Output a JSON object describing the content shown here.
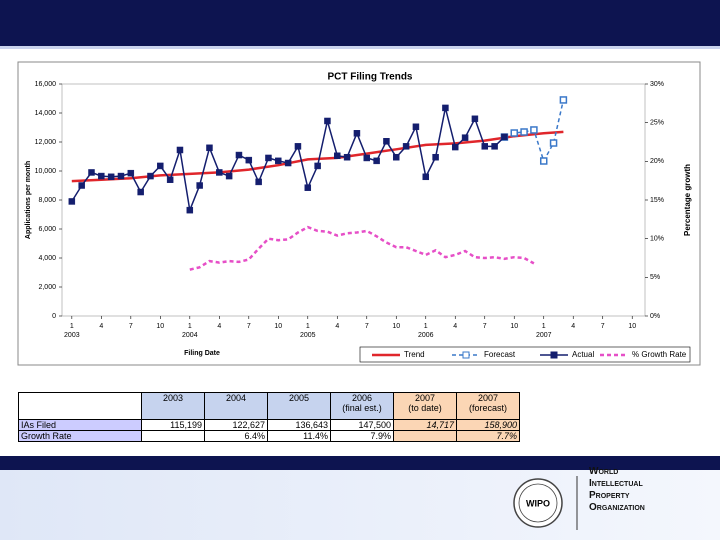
{
  "chart_data": {
    "type": "line",
    "title": "PCT Filing Trends",
    "x_label": "Filing Date",
    "y_label": "Applications per month",
    "y2_label": "Percentage growth",
    "xlim": [
      -1,
      58.3
    ],
    "xticks": [
      {
        "value": 0,
        "label": "1"
      },
      {
        "value": 3,
        "label": "4"
      },
      {
        "value": 6,
        "label": "7"
      },
      {
        "value": 9,
        "label": "10"
      },
      {
        "value": 12,
        "label": "1"
      },
      {
        "value": 15,
        "label": "4"
      },
      {
        "value": 18,
        "label": "7"
      },
      {
        "value": 21,
        "label": "10"
      },
      {
        "value": 24,
        "label": "1"
      },
      {
        "value": 27,
        "label": "4"
      },
      {
        "value": 30,
        "label": "7"
      },
      {
        "value": 33,
        "label": "10"
      },
      {
        "value": 36,
        "label": "1"
      },
      {
        "value": 39,
        "label": "4"
      },
      {
        "value": 42,
        "label": "7"
      },
      {
        "value": 45,
        "label": "10"
      },
      {
        "value": 48,
        "label": "1"
      },
      {
        "value": 51,
        "label": "4"
      },
      {
        "value": 54,
        "label": "7"
      },
      {
        "value": 57,
        "label": "10"
      }
    ],
    "year_labels": [
      {
        "value": 0,
        "label": "2003"
      },
      {
        "value": 12,
        "label": "2004"
      },
      {
        "value": 24,
        "label": "2005"
      },
      {
        "value": 36,
        "label": "2006"
      },
      {
        "value": 48,
        "label": "2007"
      }
    ],
    "ylim": [
      0,
      16000
    ],
    "yticks": [
      0,
      {
        "value": 2000,
        "label": "2,000"
      },
      {
        "value": 4000,
        "label": "4,000"
      },
      {
        "value": 6000,
        "label": "6,000"
      },
      {
        "value": 8000,
        "label": "8,000"
      },
      {
        "value": 10000,
        "label": "10,000"
      },
      {
        "value": 12000,
        "label": "12,000"
      },
      {
        "value": 14000,
        "label": "14,000"
      },
      {
        "value": 16000,
        "label": "16,000"
      }
    ],
    "y2lim": [
      0,
      30
    ],
    "y2ticks": [
      {
        "value": 0,
        "label": "0%"
      },
      {
        "value": 5,
        "label": "5%"
      },
      {
        "value": 10,
        "label": "10%"
      },
      {
        "value": 15,
        "label": "15%"
      },
      {
        "value": 20,
        "label": "20%"
      },
      {
        "value": 25,
        "label": "25%"
      },
      {
        "value": 30,
        "label": "30%"
      }
    ],
    "series": [
      {
        "name": "Trend",
        "color": "#e0262b",
        "style": "solid",
        "width": 2.5,
        "marker": "none",
        "x": [
          0,
          3,
          6,
          9,
          12,
          15,
          18,
          21,
          24,
          27,
          30,
          33,
          36,
          39,
          42,
          45,
          48,
          50
        ],
        "values": [
          9300,
          9400,
          9500,
          9700,
          9800,
          9900,
          10100,
          10400,
          10800,
          10900,
          11200,
          11500,
          11800,
          11900,
          12100,
          12400,
          12600,
          12700
        ]
      },
      {
        "name": "Forecast",
        "color": "#3a78c9",
        "style": "dashed",
        "width": 1.5,
        "marker": "hollow-square",
        "x": [
          44,
          45,
          46,
          47,
          48,
          49,
          50
        ],
        "values": [
          12340,
          12620,
          12690,
          12830,
          10690,
          11930,
          14900
        ]
      },
      {
        "name": "Actual",
        "color": "#141e6e",
        "style": "solid",
        "width": 1.5,
        "marker": "square",
        "x": [
          0,
          1,
          2,
          3,
          4,
          5,
          6,
          7,
          8,
          9,
          10,
          11,
          12,
          13,
          14,
          15,
          16,
          17,
          18,
          19,
          20,
          21,
          22,
          23,
          24,
          25,
          26,
          27,
          28,
          29,
          30,
          31,
          32,
          33,
          34,
          35,
          36,
          37,
          38,
          39,
          40,
          41,
          42,
          43,
          44
        ],
        "values": [
          7900,
          9000,
          9900,
          9650,
          9600,
          9650,
          9850,
          8550,
          9650,
          10350,
          9400,
          11450,
          7300,
          9000,
          11600,
          9900,
          9650,
          11100,
          10750,
          9250,
          10900,
          10700,
          10550,
          11700,
          8850,
          10350,
          13450,
          11050,
          10950,
          12600,
          10900,
          10700,
          12050,
          10950,
          11700,
          13050,
          9600,
          10950,
          14350,
          11650,
          12300,
          13600,
          11700,
          11700,
          12350
        ]
      },
      {
        "name": "% Growth Rate",
        "color": "#e64fc7",
        "style": "dashed",
        "width": 2.5,
        "marker": "none",
        "axis": "y2",
        "x": [
          12,
          13,
          14,
          15,
          16,
          17,
          18,
          19,
          20,
          21,
          22,
          23,
          24,
          25,
          26,
          27,
          28,
          29,
          30,
          31,
          32,
          33,
          34,
          35,
          36,
          37,
          38,
          39,
          40,
          41,
          42,
          43,
          44,
          45,
          46,
          47
        ],
        "values": [
          6.0,
          6.3,
          7.1,
          6.9,
          7.1,
          7.0,
          7.3,
          8.7,
          10.0,
          9.8,
          9.9,
          10.8,
          11.5,
          11.0,
          10.9,
          10.4,
          10.7,
          10.8,
          11.0,
          10.3,
          9.5,
          8.9,
          8.9,
          8.4,
          7.9,
          8.5,
          7.6,
          7.9,
          8.4,
          7.6,
          7.5,
          7.6,
          7.4,
          7.6,
          7.5,
          6.8
        ]
      }
    ]
  },
  "table": {
    "columns": [
      [
        "2003"
      ],
      [
        "2004"
      ],
      [
        "2005"
      ],
      [
        "2006",
        "(final est.)"
      ],
      [
        "2007",
        "(to date)"
      ],
      [
        "2007",
        "(forecast)"
      ]
    ],
    "rows": [
      {
        "label": "IAs Filed",
        "cells": [
          "115,199",
          "122,627",
          "136,643",
          "147,500",
          "14,717",
          "158,900"
        ]
      },
      {
        "label": "Growth Rate",
        "cells": [
          null,
          "6.4%",
          "11.4%",
          "7.9%",
          null,
          "7.7%"
        ]
      }
    ]
  },
  "logo": {
    "mark": "WIPO",
    "lines": [
      "World",
      "Intellectual",
      "Property",
      "Organization"
    ]
  }
}
